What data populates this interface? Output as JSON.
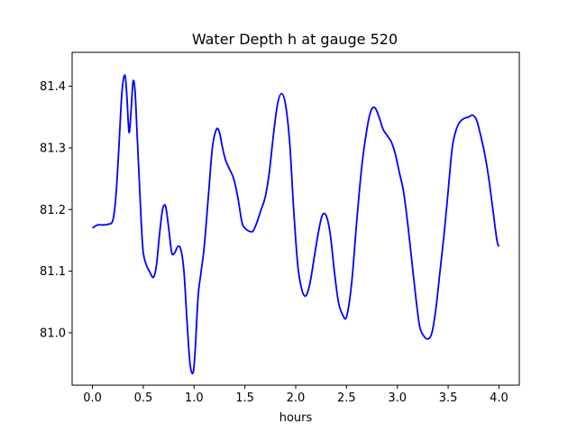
{
  "chart_data": {
    "type": "line",
    "title": "Water Depth h at gauge 520",
    "xlabel": "hours",
    "ylabel": "",
    "xlim": [
      -0.2,
      4.2
    ],
    "ylim": [
      80.915,
      81.455
    ],
    "xticks": [
      0.0,
      0.5,
      1.0,
      1.5,
      2.0,
      2.5,
      3.0,
      3.5,
      4.0
    ],
    "xtick_labels": [
      "0.0",
      "0.5",
      "1.0",
      "1.5",
      "2.0",
      "2.5",
      "3.0",
      "3.5",
      "4.0"
    ],
    "yticks": [
      81.0,
      81.1,
      81.2,
      81.3,
      81.4
    ],
    "ytick_labels": [
      "81.0",
      "81.1",
      "81.2",
      "81.3",
      "81.4"
    ],
    "grid": false,
    "series": [
      {
        "color": "#0000ff",
        "x": [
          0.0,
          0.05,
          0.1,
          0.15,
          0.2,
          0.23,
          0.26,
          0.29,
          0.32,
          0.34,
          0.36,
          0.38,
          0.4,
          0.42,
          0.44,
          0.46,
          0.48,
          0.5,
          0.53,
          0.56,
          0.6,
          0.63,
          0.66,
          0.69,
          0.72,
          0.75,
          0.78,
          0.81,
          0.84,
          0.87,
          0.9,
          0.93,
          0.96,
          0.99,
          1.01,
          1.04,
          1.07,
          1.1,
          1.14,
          1.18,
          1.22,
          1.25,
          1.28,
          1.31,
          1.35,
          1.39,
          1.43,
          1.47,
          1.5,
          1.54,
          1.58,
          1.62,
          1.66,
          1.7,
          1.74,
          1.78,
          1.82,
          1.86,
          1.9,
          1.94,
          1.98,
          2.02,
          2.06,
          2.1,
          2.14,
          2.18,
          2.22,
          2.26,
          2.3,
          2.34,
          2.38,
          2.42,
          2.46,
          2.5,
          2.55,
          2.6,
          2.65,
          2.7,
          2.74,
          2.78,
          2.82,
          2.86,
          2.9,
          2.94,
          2.98,
          3.02,
          3.06,
          3.1,
          3.14,
          3.18,
          3.22,
          3.26,
          3.3,
          3.34,
          3.38,
          3.42,
          3.46,
          3.5,
          3.54,
          3.58,
          3.62,
          3.66,
          3.7,
          3.74,
          3.78,
          3.82,
          3.86,
          3.9,
          3.94,
          3.98,
          4.0
        ],
        "values": [
          81.17,
          81.175,
          81.175,
          81.176,
          81.182,
          81.22,
          81.3,
          81.39,
          81.418,
          81.38,
          81.325,
          81.36,
          81.408,
          81.39,
          81.32,
          81.25,
          81.18,
          81.13,
          81.11,
          81.1,
          81.09,
          81.11,
          81.16,
          81.2,
          81.205,
          81.17,
          81.13,
          81.13,
          81.14,
          81.135,
          81.1,
          81.02,
          80.95,
          80.935,
          80.97,
          81.06,
          81.1,
          81.14,
          81.22,
          81.3,
          81.33,
          81.325,
          81.3,
          81.28,
          81.265,
          81.25,
          81.22,
          81.18,
          81.17,
          81.165,
          81.165,
          81.18,
          81.2,
          81.22,
          81.26,
          81.32,
          81.37,
          81.388,
          81.37,
          81.31,
          81.2,
          81.11,
          81.07,
          81.06,
          81.08,
          81.12,
          81.16,
          81.19,
          81.19,
          81.16,
          81.1,
          81.05,
          81.03,
          81.026,
          81.08,
          81.18,
          81.27,
          81.33,
          81.36,
          81.365,
          81.35,
          81.33,
          81.32,
          81.31,
          81.29,
          81.26,
          81.23,
          81.18,
          81.12,
          81.06,
          81.01,
          80.995,
          80.99,
          81.0,
          81.04,
          81.1,
          81.16,
          81.23,
          81.3,
          81.33,
          81.343,
          81.348,
          81.35,
          81.353,
          81.345,
          81.32,
          81.29,
          81.25,
          81.2,
          81.15,
          81.14
        ]
      }
    ]
  }
}
